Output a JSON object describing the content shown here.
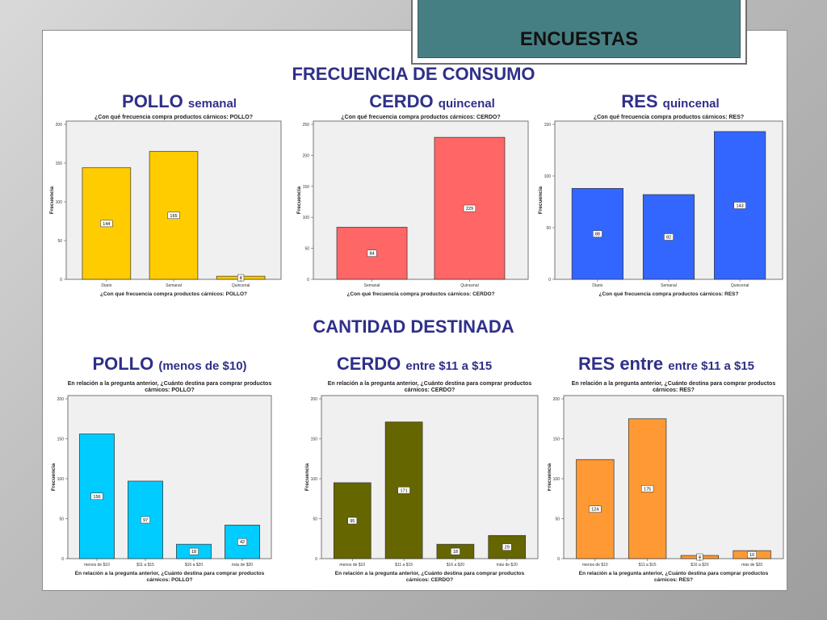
{
  "header": {
    "title": "ENCUESTAS"
  },
  "sections": {
    "frecuencia": "FRECUENCIA DE CONSUMO",
    "cantidad": "CANTIDAD DESTINADA"
  },
  "headings": [
    {
      "main": "POLLO",
      "sub": "semanal"
    },
    {
      "main": "CERDO",
      "sub": "quincenal"
    },
    {
      "main": "RES",
      "sub": "quincenal"
    },
    {
      "main": "POLLO",
      "sub": "(menos de $10)"
    },
    {
      "main": "CERDO",
      "sub": "entre $11 a $15"
    },
    {
      "main": "RES entre",
      "sub": "entre $11 a $15"
    }
  ],
  "chart_data": [
    {
      "type": "bar",
      "title": "¿Con qué frecuencia compra productos cárnicos: POLLO?",
      "xlabel": "¿Con qué frecuencia compra productos cárnicos: POLLO?",
      "ylabel": "Frecuencia",
      "categories": [
        "Diario",
        "Semanal",
        "Quincenal"
      ],
      "values": [
        144,
        165,
        4
      ],
      "ylim": [
        0,
        200
      ],
      "yticks": [
        0,
        50,
        100,
        150,
        200
      ],
      "color": "#ffcc00"
    },
    {
      "type": "bar",
      "title": "¿Con qué frecuencia compra productos cárnicos: CERDO?",
      "xlabel": "¿Con qué frecuencia compra productos cárnicos: CERDO?",
      "ylabel": "Frecuencia",
      "categories": [
        "Semanal",
        "Quincenal"
      ],
      "values": [
        84,
        229
      ],
      "ylim": [
        0,
        250
      ],
      "yticks": [
        0,
        50,
        100,
        150,
        200,
        250
      ],
      "color": "#ff6666"
    },
    {
      "type": "bar",
      "title": "¿Con qué frecuencia compra productos cárnicos: RES?",
      "xlabel": "¿Con qué frecuencia compra productos cárnicos: RES?",
      "ylabel": "Frecuencia",
      "categories": [
        "Diario",
        "Semanal",
        "Quincenal"
      ],
      "values": [
        88,
        82,
        143
      ],
      "ylim": [
        0,
        150
      ],
      "yticks": [
        0,
        50,
        100,
        150
      ],
      "color": "#3366ff"
    },
    {
      "type": "bar",
      "title": "En relación a la pregunta anterior, ¿Cuánto destina para comprar productos cárnicos: POLLO?",
      "xlabel": "En relación a la pregunta anterior, ¿Cuánto destina para comprar productos cárnicos: POLLO?",
      "ylabel": "Frecuencia",
      "categories": [
        "menos de $10",
        "$11 a $15",
        "$16 a $20",
        "más de $20"
      ],
      "values": [
        156,
        97,
        18,
        42
      ],
      "ylim": [
        0,
        200
      ],
      "yticks": [
        0,
        50,
        100,
        150,
        200
      ],
      "color": "#00ccff"
    },
    {
      "type": "bar",
      "title": "En relación a la pregunta anterior, ¿Cuánto destina para comprar productos cárnicos: CERDO?",
      "xlabel": "En relación a la pregunta anterior, ¿Cuánto destina para comprar productos cárnicos: CERDO?",
      "ylabel": "Frecuencia",
      "categories": [
        "menos de $10",
        "$11 a $15",
        "$16 a $20",
        "más de $20"
      ],
      "values": [
        95,
        171,
        18,
        29
      ],
      "ylim": [
        0,
        200
      ],
      "yticks": [
        0,
        50,
        100,
        150,
        200
      ],
      "color": "#666600"
    },
    {
      "type": "bar",
      "title": "En relación a la pregunta anterior, ¿Cuánto destina para comprar productos cárnicos: RES?",
      "xlabel": "En relación a la pregunta anterior, ¿Cuánto destina para comprar productos cárnicos: RES?",
      "ylabel": "Frecuencia",
      "categories": [
        "menos de $10",
        "$11 a $15",
        "$16 a $20",
        "más de $20"
      ],
      "values": [
        124,
        175,
        4,
        10
      ],
      "ylim": [
        0,
        200
      ],
      "yticks": [
        0,
        50,
        100,
        150,
        200
      ],
      "color": "#ff9933"
    }
  ]
}
